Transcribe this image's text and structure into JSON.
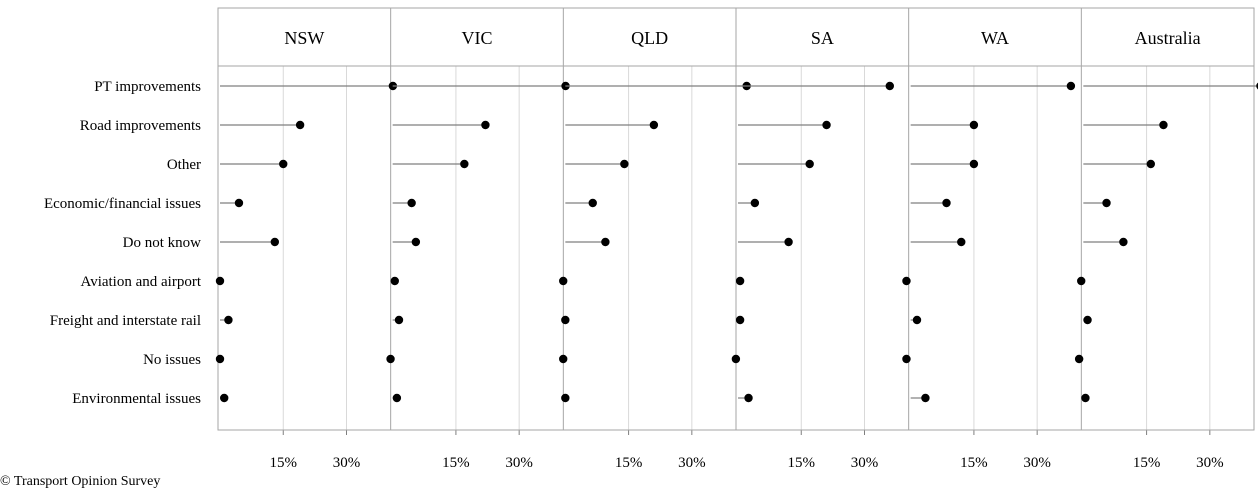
{
  "chart_data": {
    "type": "lollipop",
    "panels": [
      "NSW",
      "VIC",
      "QLD",
      "SA",
      "WA",
      "Australia"
    ],
    "categories": [
      "PT improvements",
      "Road improvements",
      "Other",
      "Economic/financial issues",
      "Do not know",
      "Aviation and airport",
      "Freight and interstate rail",
      "No issues",
      "Environmental issues"
    ],
    "xlim": [
      0,
      40
    ],
    "xticks": [
      15,
      30
    ],
    "xtick_labels": [
      "15%",
      "30%"
    ],
    "grid": true,
    "series": [
      {
        "panel": "NSW",
        "values": [
          41,
          19,
          15,
          4.5,
          13,
          0,
          2,
          0,
          1
        ]
      },
      {
        "panel": "VIC",
        "values": [
          41,
          22,
          17,
          4.5,
          5.5,
          0.5,
          1.5,
          -0.5,
          1
        ]
      },
      {
        "panel": "QLD",
        "values": [
          43,
          21,
          14,
          6.5,
          9.5,
          -0.5,
          0,
          -0.5,
          0
        ]
      },
      {
        "panel": "SA",
        "values": [
          36,
          21,
          17,
          4,
          12,
          0.5,
          0.5,
          -0.5,
          2.5
        ]
      },
      {
        "panel": "WA",
        "values": [
          38,
          15,
          15,
          8.5,
          12,
          -1,
          1.5,
          -1,
          3.5
        ]
      },
      {
        "panel": "Australia",
        "values": [
          42,
          19,
          16,
          5.5,
          9.5,
          -0.5,
          1,
          -1,
          0.5
        ]
      }
    ]
  },
  "footer": {
    "copyright": "© Transport Opinion Survey"
  }
}
